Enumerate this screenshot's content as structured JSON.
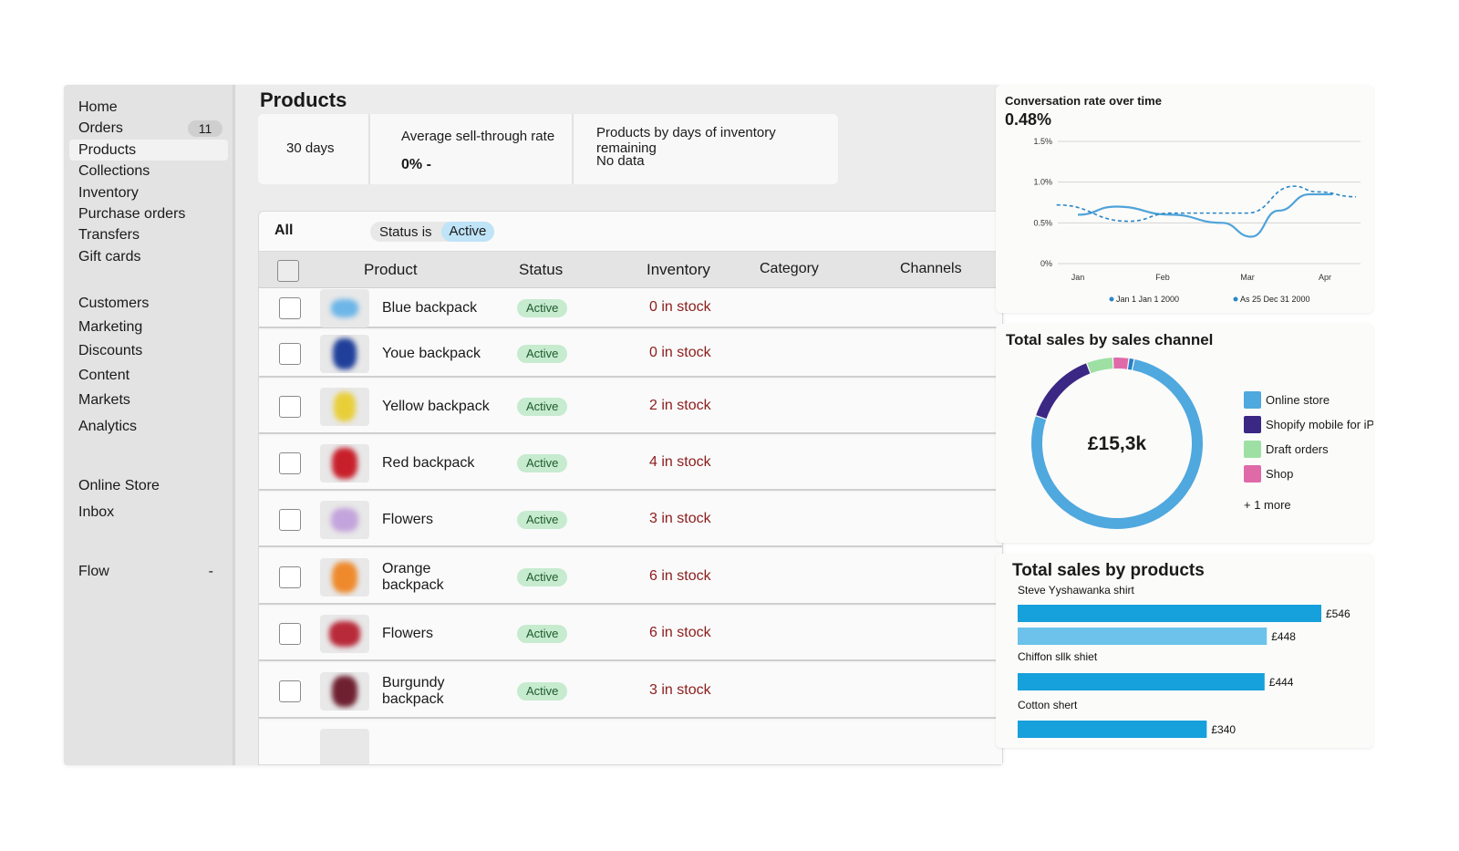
{
  "sidebar": {
    "items": [
      {
        "label": "Home"
      },
      {
        "label": "Orders",
        "badge": "11"
      },
      {
        "label": "Products",
        "active": true
      },
      {
        "label": "Collections"
      },
      {
        "label": "Inventory"
      },
      {
        "label": "Purchase orders"
      },
      {
        "label": "Transfers"
      },
      {
        "label": "Gift cards"
      },
      {
        "label": "Customers"
      },
      {
        "label": "Marketing"
      },
      {
        "label": "Discounts"
      },
      {
        "label": "Content"
      },
      {
        "label": "Markets"
      },
      {
        "label": "Analytics"
      },
      {
        "label": "Online Store"
      },
      {
        "label": "Inbox"
      },
      {
        "label": "Flow",
        "trailing": "-"
      }
    ]
  },
  "main": {
    "title": "Products",
    "metrics": {
      "period": "30 days",
      "sell_through_title": "Average sell-through rate",
      "sell_through_value": "0% -",
      "inventory_days_title": "Products by days of inventory remaining",
      "inventory_days_value": "No data"
    },
    "filter": {
      "all_label": "All",
      "chip_label": "Status is",
      "chip_value": "Active"
    },
    "columns": {
      "product": "Product",
      "status": "Status",
      "inventory": "Inventory",
      "category": "Category",
      "channels": "Channels"
    },
    "rows": [
      {
        "name": "Blue backpack",
        "status": "Active",
        "inventory": "0 in stock",
        "thumb_color": "#6cb6e8"
      },
      {
        "name": "Youe backpack",
        "status": "Active",
        "inventory": "0 in stock",
        "thumb_color": "#1f3f9a"
      },
      {
        "name": "Yellow backpack",
        "status": "Active",
        "inventory": "2 in stock",
        "thumb_color": "#e8cf3a"
      },
      {
        "name": "Red backpack",
        "status": "Active",
        "inventory": "4 in stock",
        "thumb_color": "#c8202b"
      },
      {
        "name": "Flowers",
        "status": "Active",
        "inventory": "3 in stock",
        "thumb_color": "#c4a4dc"
      },
      {
        "name": "Orange\nbackpack",
        "status": "Active",
        "inventory": "6 in stock",
        "thumb_color": "#ee8a2c"
      },
      {
        "name": "Flowers",
        "status": "Active",
        "inventory": "6 in stock",
        "thumb_color": "#b82a3a"
      },
      {
        "name": "Burgundy\nbackpack",
        "status": "Active",
        "inventory": "3 in stock",
        "thumb_color": "#6e2030"
      }
    ]
  },
  "conversion_card": {
    "title": "Conversation rate over time",
    "value": "0.48%",
    "chart_data": {
      "type": "line",
      "x": [
        "Jan",
        "Feb",
        "Mar",
        "Apr"
      ],
      "y_ticks": [
        "1.5%",
        "1.0%",
        "0.5%",
        "0%"
      ],
      "ylim": [
        0,
        1.5
      ],
      "series": [
        {
          "name": "Jan 1 Jan 1 2000",
          "style": "solid",
          "color": "#4fa3d9",
          "points": [
            [
              0,
              0.6
            ],
            [
              0.45,
              0.7
            ],
            [
              1.1,
              0.6
            ],
            [
              1.7,
              0.5
            ],
            [
              2.05,
              0.33
            ],
            [
              2.4,
              0.65
            ],
            [
              2.8,
              0.85
            ],
            [
              3.1,
              0.85
            ]
          ]
        },
        {
          "name": "As 25 Dec 31 2000",
          "style": "dashed",
          "color": "#2a86c6",
          "points": [
            [
              -0.25,
              0.72
            ],
            [
              0.6,
              0.52
            ],
            [
              1.1,
              0.62
            ],
            [
              2.0,
              0.62
            ],
            [
              2.6,
              0.95
            ],
            [
              2.9,
              0.88
            ],
            [
              3.4,
              0.82
            ]
          ]
        }
      ]
    }
  },
  "channel_card": {
    "title": "Total sales by sales channel",
    "center_value": "£15,3k",
    "legend": [
      {
        "label": "Online store",
        "color": "#4fa8de"
      },
      {
        "label": "Shopify mobile for iPh",
        "color": "#3b2784"
      },
      {
        "label": "Draft orders",
        "color": "#9ee0a4"
      },
      {
        "label": "Shop",
        "color": "#e06aa8"
      }
    ],
    "more": "+ 1 more",
    "chart_data": {
      "type": "pie",
      "series": [
        {
          "name": "Online store",
          "value": 77,
          "color": "#4fa8de"
        },
        {
          "name": "Shopify mobile for iPh",
          "value": 14,
          "color": "#3b2784"
        },
        {
          "name": "Draft orders",
          "value": 5,
          "color": "#9ee0a4"
        },
        {
          "name": "Shop",
          "value": 3,
          "color": "#e06aa8"
        },
        {
          "name": "",
          "value": 1,
          "color": "#2a7fc4"
        }
      ]
    }
  },
  "products_card": {
    "title": "Total sales by products",
    "chart_data": {
      "type": "bar",
      "orientation": "horizontal",
      "xlim": [
        0,
        546
      ],
      "groups": [
        {
          "label": "Steve Yyshawanka shirt",
          "bars": [
            {
              "value": 546,
              "label": "£546",
              "color": "#16a0dc"
            },
            {
              "value": 448,
              "label": "£448",
              "color": "#6cc2ea"
            }
          ]
        },
        {
          "label": "Chiffon sllk shiet",
          "bars": [
            {
              "value": 444,
              "label": "£444",
              "color": "#16a0dc"
            }
          ]
        },
        {
          "label": "Cotton shert",
          "bars": [
            {
              "value": 340,
              "label": "£340",
              "color": "#16a0dc"
            }
          ]
        }
      ]
    }
  }
}
